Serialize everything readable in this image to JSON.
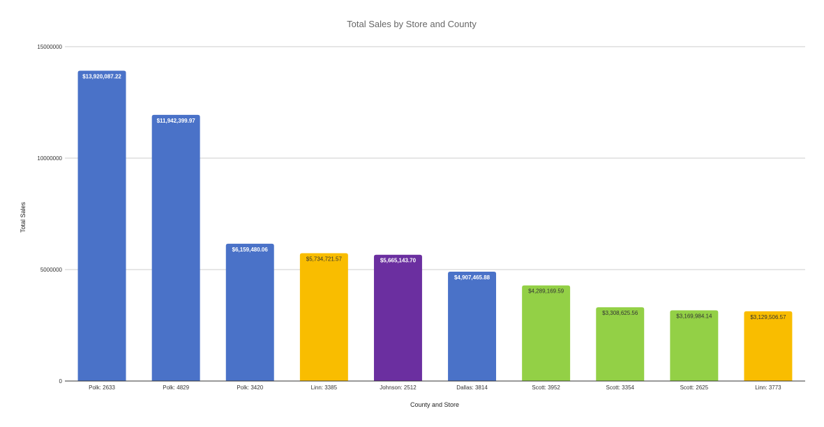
{
  "chart_data": {
    "type": "bar",
    "title": "Total Sales by Store and County",
    "xlabel": "County and Store",
    "ylabel": "Total Sales",
    "ylim": [
      0,
      15000000
    ],
    "yticks": [
      "0",
      "5000000",
      "10000000",
      "15000000"
    ],
    "ytick_values": [
      0,
      5000000,
      10000000,
      15000000
    ],
    "grid": true,
    "legend": "none",
    "categories": [
      "Polk: 2633",
      "Polk: 4829",
      "Polk: 3420",
      "Linn: 3385",
      "Johnson: 2512",
      "Dallas: 3814",
      "Scott: 3952",
      "Scott: 3354",
      "Scott: 2625",
      "Linn: 3773"
    ],
    "values": [
      13920087.22,
      11942399.97,
      6159480.06,
      5734721.57,
      5665143.7,
      4907465.88,
      4289169.59,
      3308625.56,
      3169984.14,
      3129506.57
    ],
    "data_labels": [
      "$13,920,087.22",
      "$11,942,399.97",
      "$6,159,480.06",
      "$5,734,721.57",
      "$5,665,143.70",
      "$4,907,465.88",
      "$4,289,169.59",
      "$3,308,625.56",
      "$3,169,984.14",
      "$3,129,506.57"
    ],
    "colors": [
      "#4a72c8",
      "#4a72c8",
      "#4a72c8",
      "#f9bd00",
      "#6b2fa0",
      "#4a72c8",
      "#93d046",
      "#93d046",
      "#93d046",
      "#f9bd00"
    ],
    "label_colors": [
      "#ffffff",
      "#ffffff",
      "#ffffff",
      "#333333",
      "#ffffff",
      "#ffffff",
      "#333333",
      "#333333",
      "#333333",
      "#333333"
    ]
  }
}
